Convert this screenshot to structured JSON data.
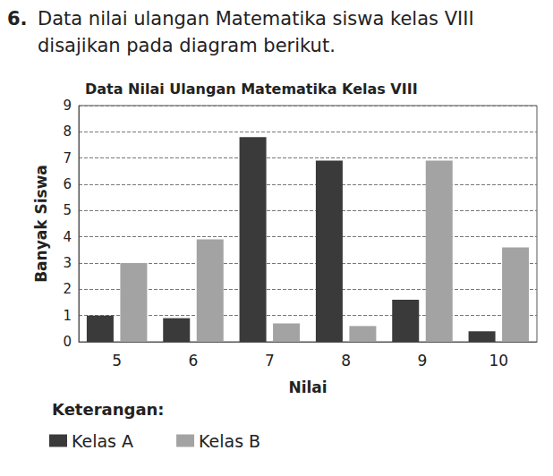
{
  "question": {
    "number": "6.",
    "text": "Data nilai ulangan Matematika siswa kelas VIII disajikan pada diagram berikut."
  },
  "chart_data": {
    "type": "bar",
    "title": "Data Nilai Ulangan Matematika Kelas VIII",
    "x_label": "Nilai",
    "y_label": "Banyak Siswa",
    "categories": [
      "5",
      "6",
      "7",
      "8",
      "9",
      "10"
    ],
    "series": [
      {
        "name": "Kelas A",
        "color": "#3a3a3a",
        "values": [
          1,
          0.9,
          7.8,
          6.9,
          1.6,
          0.4
        ]
      },
      {
        "name": "Kelas B",
        "color": "#a3a3a3",
        "values": [
          3,
          3.9,
          0.7,
          0.6,
          6.9,
          3.6
        ]
      }
    ],
    "ylim": [
      0,
      9
    ],
    "yticks": [
      0,
      1,
      2,
      3,
      4,
      5,
      6,
      7,
      8,
      9
    ],
    "grid": true,
    "legend": "bottom-left",
    "legend_title": "Keterangan:"
  }
}
